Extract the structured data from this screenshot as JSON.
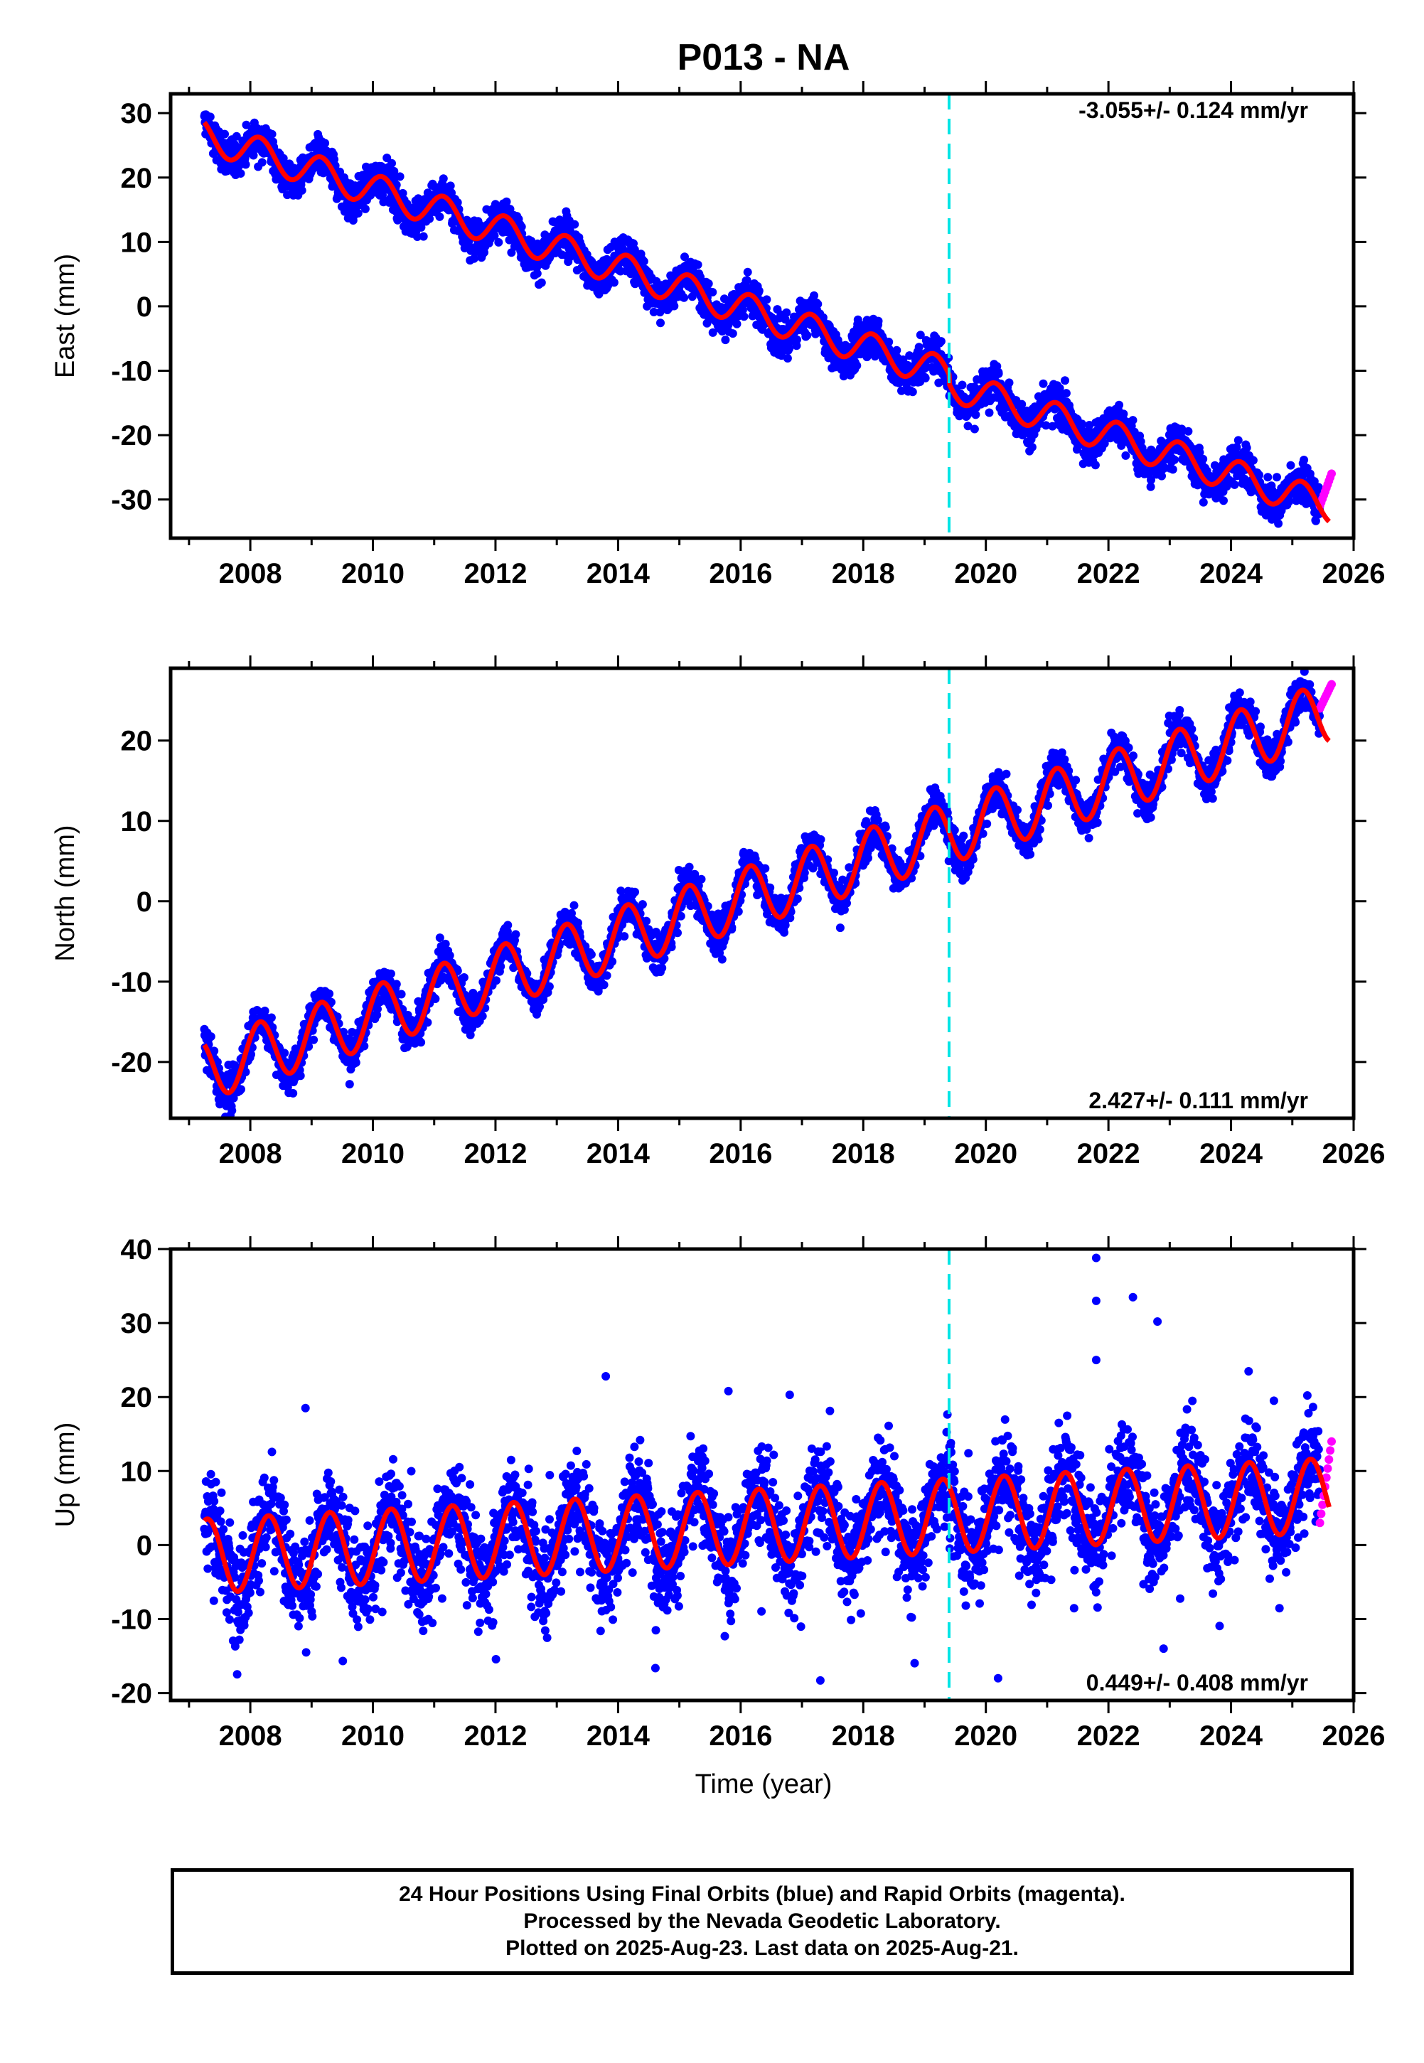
{
  "title": "P013 - NA",
  "xlabel": "Time (year)",
  "footer": {
    "line1": "24 Hour Positions Using Final Orbits (blue) and Rapid Orbits (magenta).",
    "line2": "Processed by the Nevada Geodetic Laboratory.",
    "line3": "Plotted on 2025-Aug-23. Last data on 2025-Aug-21."
  },
  "colors": {
    "final_orbits": "#0000ff",
    "rapid_orbits": "#ff00ff",
    "model_fit": "#ff0000",
    "event_line": "#00e5e5"
  },
  "chart_data": [
    {
      "type": "scatter",
      "ylabel": "East (mm)",
      "rate_label": "-3.055+/- 0.124 mm/yr",
      "rate_position": "top-right",
      "xlim": [
        2006.7,
        2026.0
      ],
      "ylim": [
        -36,
        33
      ],
      "x_ticks": [
        2008,
        2010,
        2012,
        2014,
        2016,
        2018,
        2020,
        2022,
        2024,
        2026
      ],
      "y_ticks": [
        -30,
        -20,
        -10,
        0,
        10,
        20,
        30
      ],
      "event_line_x": 2019.4,
      "series": [
        {
          "name": "Final Orbits (blue)",
          "x_range": [
            2007.25,
            2025.45
          ],
          "trend_start": 26.5,
          "rate": -3.055,
          "annual_amplitude": 2.5,
          "scatter": 1.5
        },
        {
          "name": "Rapid Orbits (magenta)",
          "x_range": [
            2025.45,
            2025.64
          ],
          "approx_y": [
            -31,
            -26
          ]
        },
        {
          "name": "model fit",
          "x_range": [
            2007.25,
            2025.6
          ]
        }
      ]
    },
    {
      "type": "scatter",
      "ylabel": "North (mm)",
      "rate_label": "2.427+/- 0.111 mm/yr",
      "rate_position": "bottom-right",
      "xlim": [
        2006.7,
        2026.0
      ],
      "ylim": [
        -27,
        29
      ],
      "x_ticks": [
        2008,
        2010,
        2012,
        2014,
        2016,
        2018,
        2020,
        2022,
        2024,
        2026
      ],
      "y_ticks": [
        -20,
        -10,
        0,
        10,
        20
      ],
      "event_line_x": 2019.4,
      "series": [
        {
          "name": "Final Orbits (blue)",
          "x_range": [
            2007.25,
            2025.45
          ],
          "trend_start": -21,
          "rate": 2.427,
          "annual_amplitude": 3.8,
          "scatter": 1.2
        },
        {
          "name": "Rapid Orbits (magenta)",
          "x_range": [
            2025.45,
            2025.64
          ],
          "approx_y": [
            24,
            27
          ]
        },
        {
          "name": "model fit",
          "x_range": [
            2007.25,
            2025.6
          ]
        }
      ]
    },
    {
      "type": "scatter",
      "ylabel": "Up (mm)",
      "rate_label": "0.449+/- 0.408 mm/yr",
      "rate_position": "bottom-right",
      "xlim": [
        2006.7,
        2026.0
      ],
      "ylim": [
        -21,
        40
      ],
      "x_ticks": [
        2008,
        2010,
        2012,
        2014,
        2016,
        2018,
        2020,
        2022,
        2024,
        2026
      ],
      "y_ticks": [
        -20,
        -10,
        0,
        10,
        20,
        30,
        40
      ],
      "event_line_x": 2019.4,
      "series": [
        {
          "name": "Final Orbits (blue)",
          "x_range": [
            2007.25,
            2025.45
          ],
          "trend_start": -1.5,
          "rate": 0.449,
          "annual_amplitude": 5.0,
          "scatter": 3.2
        },
        {
          "name": "Rapid Orbits (magenta)",
          "x_range": [
            2025.45,
            2025.64
          ],
          "approx_y": [
            3,
            14
          ]
        },
        {
          "name": "model fit",
          "x_range": [
            2007.25,
            2025.6
          ]
        }
      ],
      "outliers": [
        [
          2008.9,
          18.5
        ],
        [
          2013.8,
          22.8
        ],
        [
          2015.8,
          20.8
        ],
        [
          2016.8,
          20.3
        ],
        [
          2017.3,
          -18.3
        ],
        [
          2021.8,
          38.8
        ],
        [
          2021.8,
          33.0
        ],
        [
          2021.8,
          25.0
        ],
        [
          2022.4,
          33.5
        ],
        [
          2022.8,
          30.2
        ],
        [
          2023.4,
          14.5
        ],
        [
          2024.7,
          19.5
        ],
        [
          2022.9,
          -14.0
        ],
        [
          2020.2,
          -18.0
        ]
      ]
    }
  ]
}
